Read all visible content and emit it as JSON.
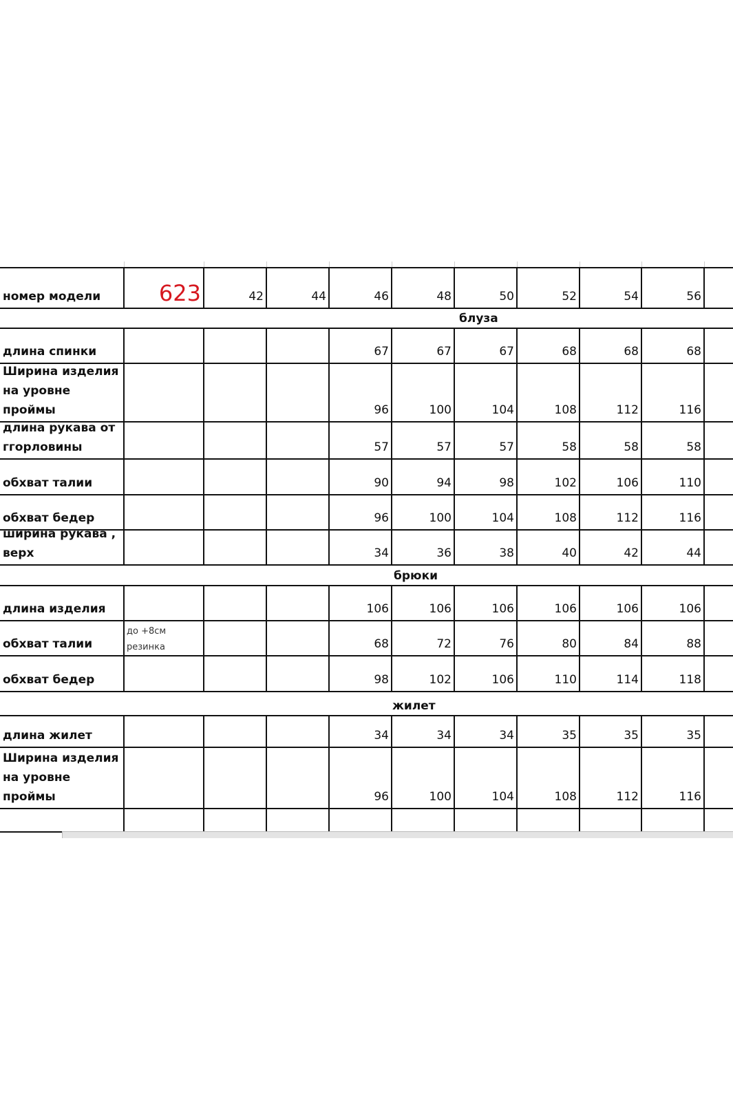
{
  "header": {
    "label": "номер модели",
    "model": "623",
    "sizes": [
      "42",
      "44",
      "46",
      "48",
      "50",
      "52",
      "54",
      "56"
    ]
  },
  "sections": [
    {
      "title": "блуза",
      "rows": [
        {
          "label": "длина спинки",
          "values": [
            "",
            "",
            "67",
            "67",
            "67",
            "68",
            "68",
            "68"
          ]
        },
        {
          "label": "Ширина изделия\nна уровне\nпроймы",
          "values": [
            "",
            "",
            "96",
            "100",
            "104",
            "108",
            "112",
            "116"
          ]
        },
        {
          "label": "длина рукава от\nггорловины",
          "values": [
            "",
            "",
            "57",
            "57",
            "57",
            "58",
            "58",
            "58"
          ]
        },
        {
          "label": "обхват талии",
          "values": [
            "",
            "",
            "90",
            "94",
            "98",
            "102",
            "106",
            "110"
          ]
        },
        {
          "label": "обхват бедер",
          "values": [
            "",
            "",
            "96",
            "100",
            "104",
            "108",
            "112",
            "116"
          ]
        },
        {
          "label": "ширина рукава ,\nверх",
          "values": [
            "",
            "",
            "34",
            "36",
            "38",
            "40",
            "42",
            "44"
          ]
        }
      ]
    },
    {
      "title": "брюки",
      "rows": [
        {
          "label": "длина изделия",
          "values": [
            "",
            "",
            "106",
            "106",
            "106",
            "106",
            "106",
            "106"
          ]
        },
        {
          "label": "обхват талии",
          "note": "до +8см\nрезинка",
          "values": [
            "",
            "",
            "68",
            "72",
            "76",
            "80",
            "84",
            "88"
          ]
        },
        {
          "label": "обхват бедер",
          "values": [
            "",
            "",
            "98",
            "102",
            "106",
            "110",
            "114",
            "118"
          ]
        }
      ]
    },
    {
      "title": "жилет",
      "rows": [
        {
          "label": "длина жилет",
          "values": [
            "",
            "",
            "34",
            "34",
            "34",
            "35",
            "35",
            "35"
          ]
        },
        {
          "label": "Ширина изделия\nна уровне\nпроймы",
          "values": [
            "",
            "",
            "96",
            "100",
            "104",
            "108",
            "112",
            "116"
          ]
        },
        {
          "label": "",
          "values": [
            "",
            "",
            "",
            "",
            "",
            "",
            "",
            ""
          ]
        }
      ]
    }
  ],
  "colors": {
    "model_number": "#d61820",
    "grid": "#111111"
  }
}
